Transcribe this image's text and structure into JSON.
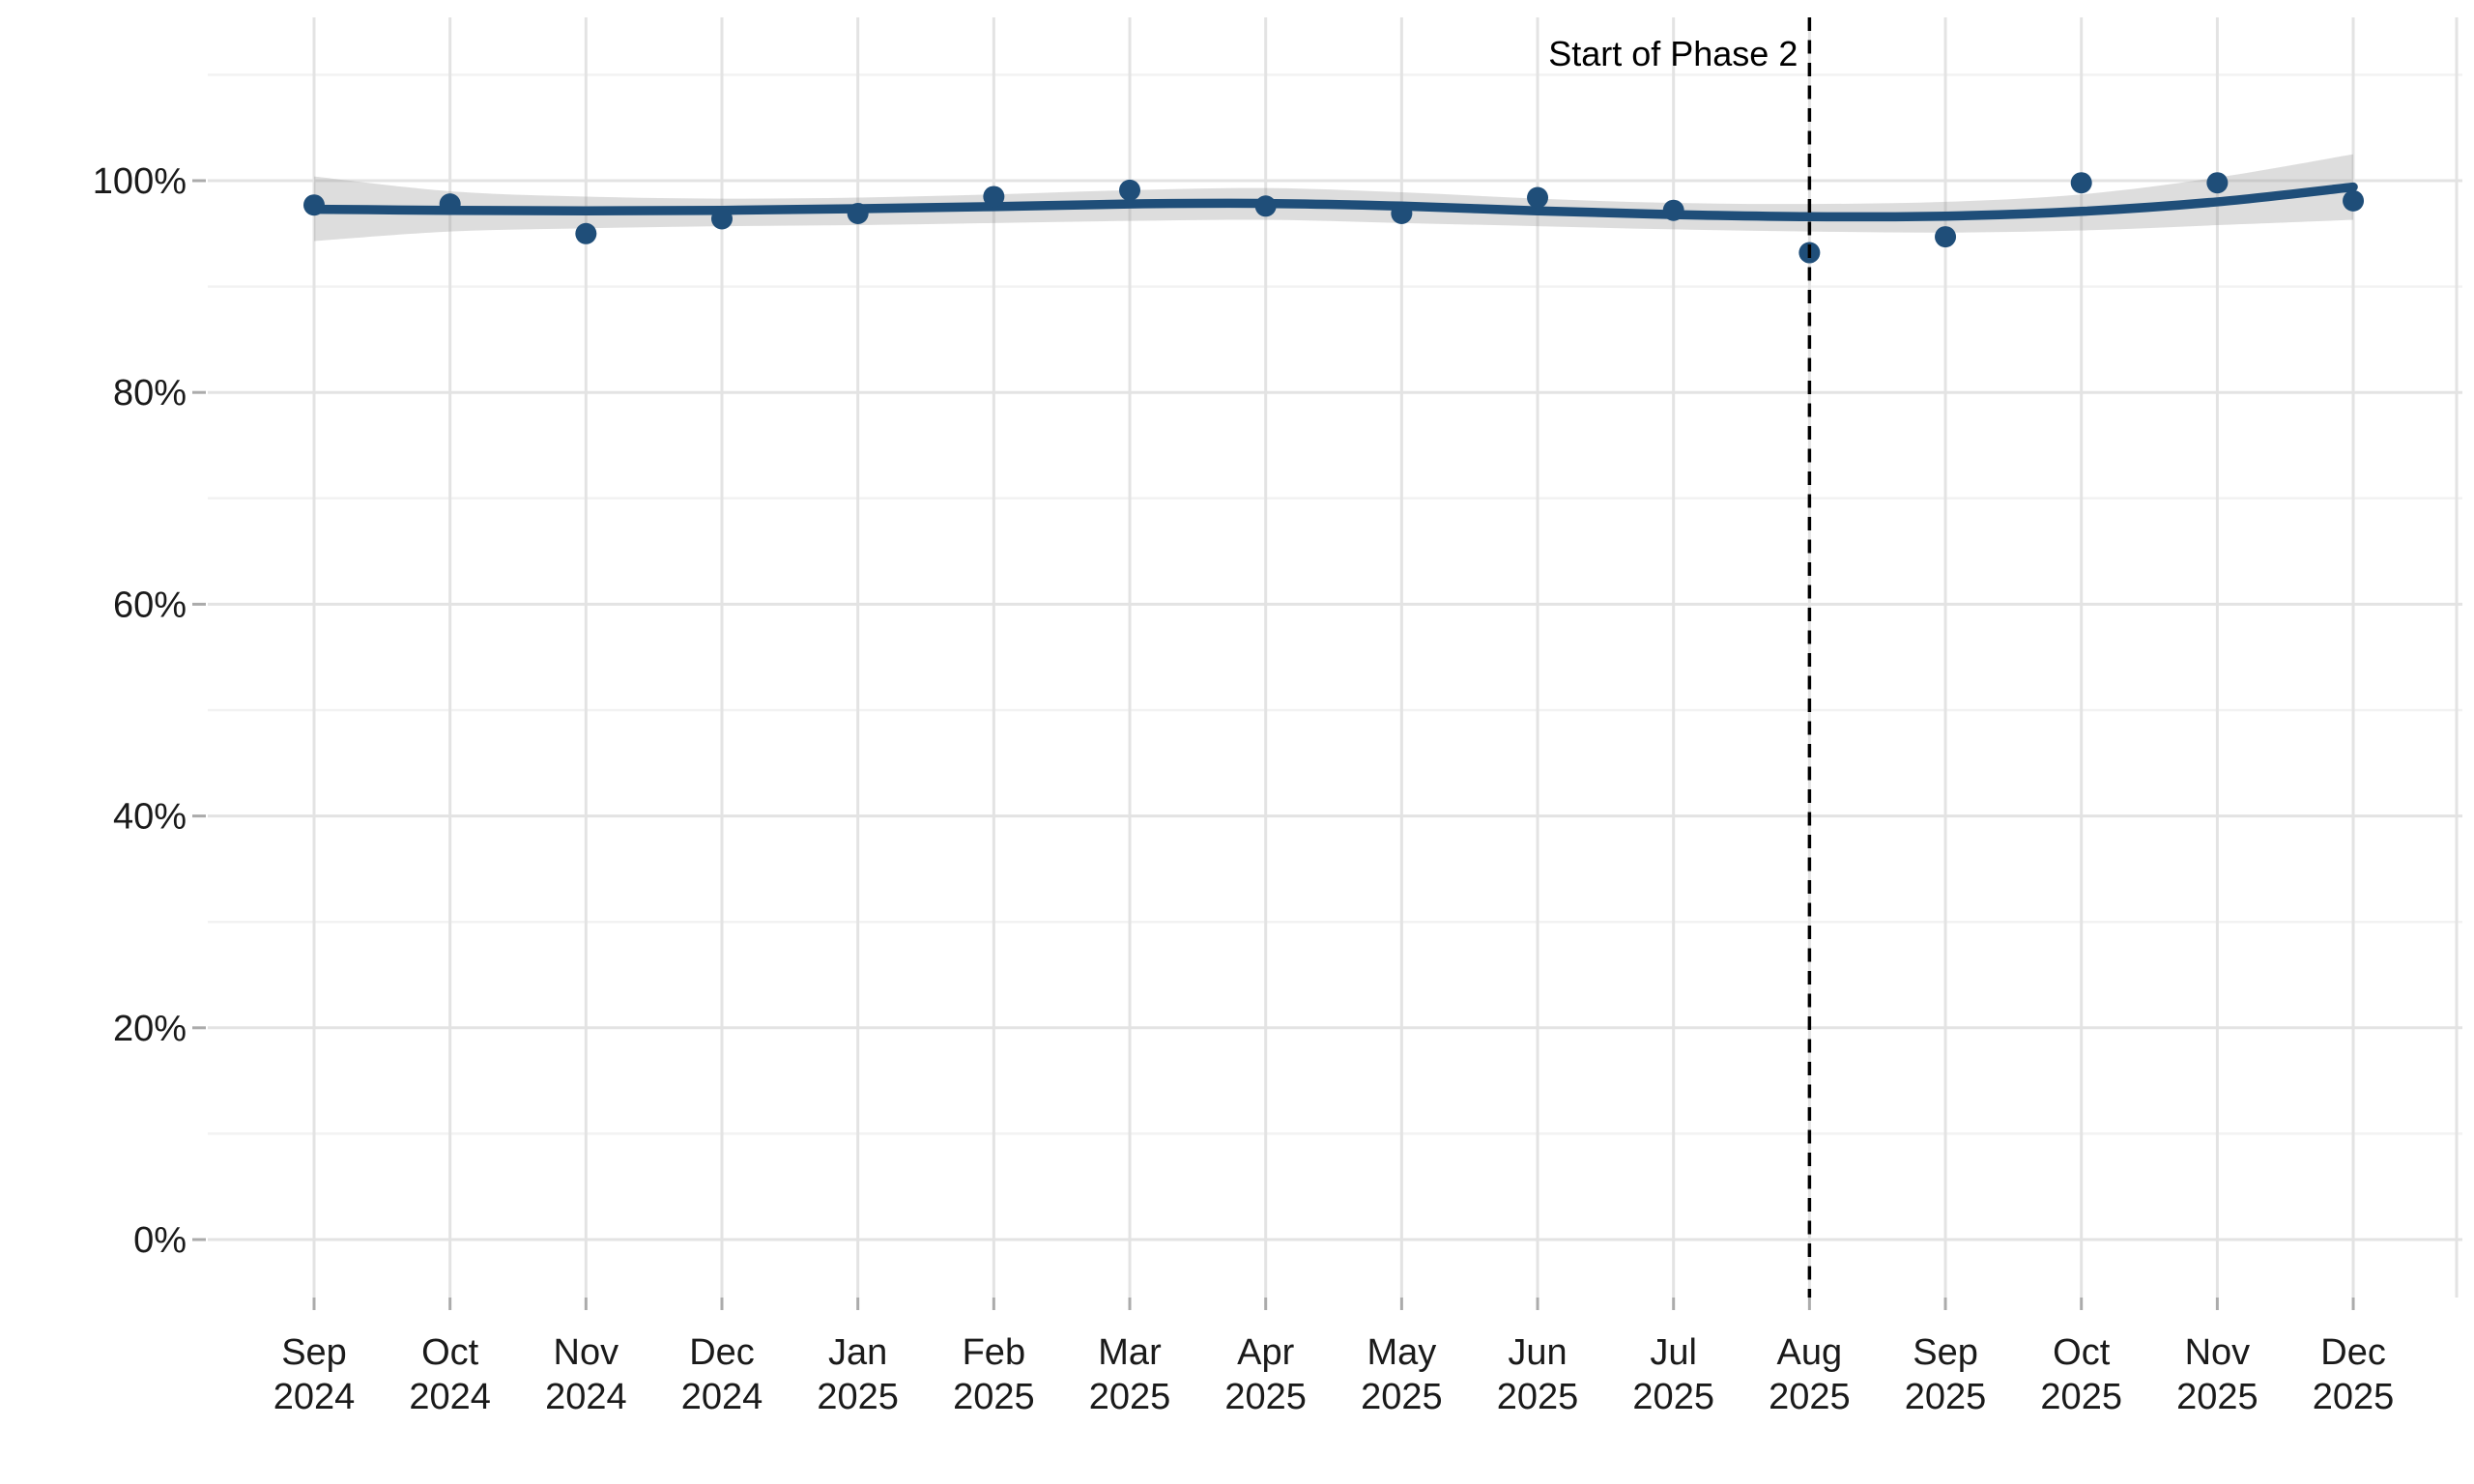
{
  "chart_data": {
    "type": "scatter",
    "subtype": "points-with-loess-smooth-and-confidence-band",
    "title": "",
    "xlabel": "",
    "ylabel": "",
    "grid": "on",
    "legend": "none",
    "x_categories": [
      {
        "month": "Sep",
        "year": "2024"
      },
      {
        "month": "Oct",
        "year": "2024"
      },
      {
        "month": "Nov",
        "year": "2024"
      },
      {
        "month": "Dec",
        "year": "2024"
      },
      {
        "month": "Jan",
        "year": "2025"
      },
      {
        "month": "Feb",
        "year": "2025"
      },
      {
        "month": "Mar",
        "year": "2025"
      },
      {
        "month": "Apr",
        "year": "2025"
      },
      {
        "month": "May",
        "year": "2025"
      },
      {
        "month": "Jun",
        "year": "2025"
      },
      {
        "month": "Jul",
        "year": "2025"
      },
      {
        "month": "Aug",
        "year": "2025"
      },
      {
        "month": "Sep",
        "year": "2025"
      },
      {
        "month": "Oct",
        "year": "2025"
      },
      {
        "month": "Nov",
        "year": "2025"
      },
      {
        "month": "Dec",
        "year": "2025"
      }
    ],
    "series": [
      {
        "name": "observed_percent",
        "role": "points",
        "values": [
          97.7,
          97.8,
          95.0,
          96.4,
          96.9,
          98.5,
          99.1,
          97.6,
          96.9,
          98.4,
          97.2,
          93.2,
          94.7,
          99.8,
          99.8,
          98.1
        ]
      },
      {
        "name": "trend_percent",
        "role": "smooth-line",
        "values": [
          97.3,
          97.2,
          97.15,
          97.2,
          97.35,
          97.55,
          97.8,
          97.85,
          97.6,
          97.15,
          96.8,
          96.6,
          96.65,
          97.1,
          98.0,
          99.4
        ]
      },
      {
        "name": "ci_upper_percent",
        "role": "band-upper",
        "values": [
          100.4,
          99.0,
          98.5,
          98.3,
          98.4,
          98.7,
          99.1,
          99.3,
          98.9,
          98.3,
          97.9,
          97.8,
          98.0,
          98.7,
          100.3,
          102.5
        ]
      },
      {
        "name": "ci_lower_percent",
        "role": "band-lower",
        "values": [
          94.3,
          95.2,
          95.5,
          95.7,
          95.8,
          96.0,
          96.2,
          96.3,
          96.0,
          95.7,
          95.4,
          95.2,
          95.1,
          95.3,
          95.8,
          96.3
        ]
      }
    ],
    "y_axis": {
      "ticks": [
        {
          "value": 0,
          "label": "0%"
        },
        {
          "value": 20,
          "label": "20%"
        },
        {
          "value": 40,
          "label": "40%"
        },
        {
          "value": 60,
          "label": "60%"
        },
        {
          "value": 80,
          "label": "80%"
        },
        {
          "value": 100,
          "label": "100%"
        }
      ],
      "minor_gridline_values": [
        10,
        30,
        50,
        70,
        90,
        110
      ],
      "range_shown": [
        -5.5,
        115.4
      ]
    },
    "annotation": {
      "label": "Start of Phase 2",
      "at_category_index": 11,
      "line_style": "dashed"
    },
    "colors": {
      "point": "#1f4e79",
      "trend_line": "#1f4e79",
      "band_fill": "#999999",
      "band_opacity": "0.33",
      "grid_major": "#e3e3e3",
      "grid_minor": "#f2f2f2",
      "tick_mark": "#ababab",
      "axis_text": "#1a1a1a",
      "annotation_line": "#000000"
    }
  }
}
